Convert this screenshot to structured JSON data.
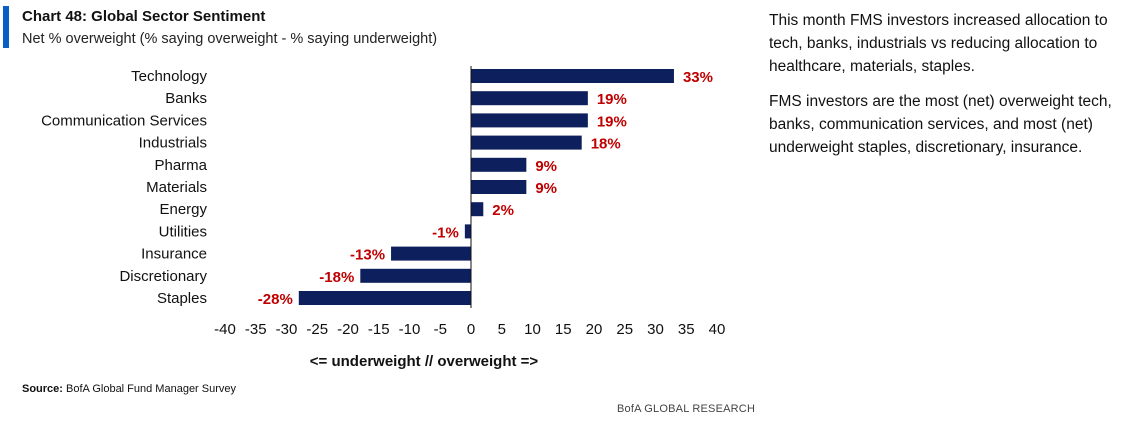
{
  "title": "Chart 48: Global Sector Sentiment",
  "subtitle": "Net % overweight (% saying overweight - % saying underweight)",
  "chart_data": {
    "type": "bar",
    "orientation": "horizontal",
    "title": "Chart 48: Global Sector Sentiment",
    "subtitle": "Net % overweight (% saying overweight - % saying underweight)",
    "xlabel": "<= underweight // overweight =>",
    "ylabel": "",
    "categories": [
      "Technology",
      "Banks",
      "Communication Services",
      "Industrials",
      "Pharma",
      "Materials",
      "Energy",
      "Utilities",
      "Insurance",
      "Discretionary",
      "Staples"
    ],
    "values": [
      33,
      19,
      19,
      18,
      9,
      9,
      2,
      -1,
      -13,
      -18,
      -28
    ],
    "value_labels": [
      "33%",
      "19%",
      "19%",
      "18%",
      "9%",
      "9%",
      "2%",
      "-1%",
      "-13%",
      "-18%",
      "-28%"
    ],
    "xlim": [
      -40,
      40
    ],
    "xticks": [
      "-40",
      "-35",
      "-30",
      "-25",
      "-20",
      "-15",
      "-10",
      "-5",
      "0",
      "5",
      "10",
      "15",
      "20",
      "25",
      "30",
      "35",
      "40"
    ],
    "grid": false,
    "colors": {
      "bar": "#0d1f5c",
      "label": "#c00000",
      "accent": "#0a5fc4"
    }
  },
  "source": {
    "label": "Source:",
    "text": "BofA Global Fund Manager Survey"
  },
  "footer": "BofA GLOBAL RESEARCH",
  "commentary": [
    "This month FMS investors increased allocation to tech, banks, industrials vs reducing allocation to healthcare, materials, staples.",
    "FMS investors are the most (net) overweight tech, banks, communication services, and most (net) underweight staples, discretionary, insurance."
  ]
}
